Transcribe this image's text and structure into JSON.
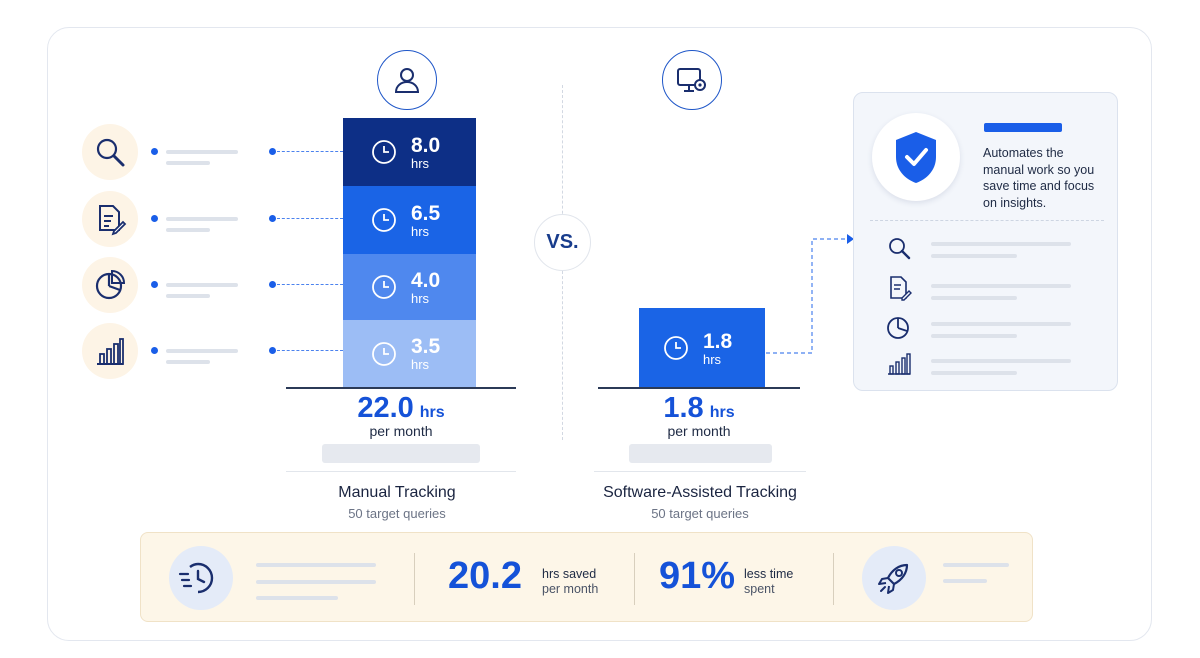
{
  "vs_label": "VS.",
  "manual": {
    "segments": [
      {
        "value": "8.0",
        "unit": "hrs",
        "color": "#0d2f86"
      },
      {
        "value": "6.5",
        "unit": "hrs",
        "color": "#1a64e6"
      },
      {
        "value": "4.0",
        "unit": "hrs",
        "color": "#4f88ee"
      },
      {
        "value": "3.5",
        "unit": "hrs",
        "color": "#9cbdf5"
      }
    ],
    "total": "22.0",
    "total_unit": "hrs",
    "per": "per month",
    "title": "Manual Tracking",
    "subtitle": "50 target queries",
    "tasks": [
      "search-icon",
      "document-edit-icon",
      "pie-chart-icon",
      "bar-chart-icon"
    ]
  },
  "software": {
    "segment": {
      "value": "1.8",
      "unit": "hrs",
      "color": "#1a64e6"
    },
    "total": "1.8",
    "total_unit": "hrs",
    "per": "per month",
    "title": "Software-Assisted Tracking",
    "subtitle": "50 target queries"
  },
  "panel": {
    "description": "Automates the manual work so you save time and focus on insights.",
    "icons": [
      "search-icon",
      "document-edit-icon",
      "pie-chart-icon",
      "bar-chart-icon"
    ]
  },
  "summary": {
    "saved_value": "20.2",
    "saved_label": "hrs saved",
    "saved_sub": "per month",
    "percent_value": "91%",
    "percent_label": "less time",
    "percent_sub": "spent"
  },
  "colors": {
    "accent": "#1a5ee8",
    "navy": "#0d2f86",
    "cream": "#fdf6e8"
  }
}
